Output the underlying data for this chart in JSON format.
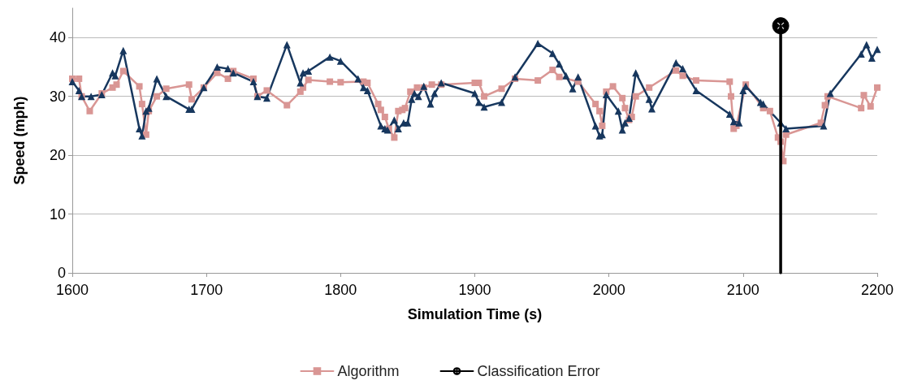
{
  "chart_data": {
    "type": "line",
    "xlabel": "Simulation Time (s)",
    "ylabel": "Speed (mph)",
    "xlim": [
      1600,
      2200
    ],
    "xticks": [
      1600,
      1700,
      1800,
      1900,
      2000,
      2100,
      2200
    ],
    "ylim": [
      0,
      45
    ],
    "yticks": [
      0,
      10,
      20,
      30,
      40
    ],
    "grid": "y",
    "legend": "bottom",
    "line_style": "solid",
    "series": [
      {
        "name": "Algorithm",
        "color": "#d99694",
        "marker": "square",
        "x": [
          1600,
          1605,
          1607,
          1613,
          1622,
          1630,
          1633,
          1638,
          1650,
          1652,
          1655,
          1657,
          1663,
          1670,
          1687,
          1689,
          1698,
          1708,
          1716,
          1720,
          1735,
          1738,
          1745,
          1760,
          1770,
          1772,
          1776,
          1792,
          1800,
          1817,
          1820,
          1828,
          1830,
          1833,
          1836,
          1840,
          1843,
          1846,
          1848,
          1852,
          1857,
          1862,
          1868,
          1875,
          1900,
          1903,
          1907,
          1920,
          1930,
          1947,
          1958,
          1963,
          1977,
          1990,
          1993,
          1995,
          1998,
          2003,
          2010,
          2012,
          2015,
          2017,
          2020,
          2030,
          2050,
          2055,
          2065,
          2090,
          2091,
          2093,
          2095,
          2102,
          2115,
          2120,
          2126,
          2128,
          2130,
          2132,
          2158,
          2161,
          2163,
          2188,
          2190,
          2195,
          2200
        ],
        "values": [
          33,
          33,
          30,
          27.5,
          30.5,
          31.5,
          32,
          34.3,
          31.7,
          28.7,
          23.5,
          27.5,
          30,
          31.3,
          32,
          29.5,
          31.5,
          34,
          33,
          34.3,
          33,
          30,
          31,
          28.5,
          30.8,
          31.5,
          32.8,
          32.5,
          32.4,
          32.5,
          32.3,
          28.7,
          27.7,
          26.5,
          24.5,
          23,
          27.5,
          27.7,
          28,
          30.8,
          31.5,
          31.5,
          32,
          32,
          32.3,
          32.3,
          30,
          31.3,
          33,
          32.7,
          34.5,
          33.3,
          32.5,
          28.7,
          27.5,
          25,
          30.8,
          31.7,
          29.7,
          28,
          26,
          26.5,
          30,
          31.5,
          34.4,
          33.5,
          32.7,
          32.5,
          30,
          24.5,
          25,
          32,
          28,
          27.5,
          23,
          22.3,
          19,
          23.5,
          25.5,
          28.5,
          30,
          28,
          30.2,
          28.3,
          31.5
        ]
      },
      {
        "color": "#17375e",
        "marker": "triangle",
        "x": [
          1600,
          1605,
          1607,
          1614,
          1622,
          1630,
          1632,
          1638,
          1650,
          1652,
          1655,
          1657,
          1663,
          1670,
          1687,
          1689,
          1698,
          1708,
          1716,
          1720,
          1735,
          1738,
          1745,
          1760,
          1770,
          1772,
          1776,
          1792,
          1800,
          1813,
          1817,
          1820,
          1830,
          1833,
          1835,
          1840,
          1843,
          1847,
          1850,
          1853,
          1855,
          1858,
          1862,
          1867,
          1870,
          1875,
          1900,
          1903,
          1907,
          1920,
          1930,
          1947,
          1958,
          1963,
          1968,
          1973,
          1977,
          1990,
          1993,
          1995,
          1998,
          2007,
          2010,
          2012,
          2015,
          2020,
          2030,
          2032,
          2050,
          2055,
          2065,
          2090,
          2093,
          2097,
          2100,
          2102,
          2113,
          2115,
          2128,
          2132,
          2160,
          2165,
          2188,
          2192,
          2196,
          2200
        ],
        "values": [
          32.5,
          31,
          30,
          30,
          30.3,
          34,
          33.5,
          37.8,
          24.5,
          23.3,
          27.5,
          28,
          33,
          30,
          27.8,
          27.8,
          31.5,
          35,
          34.7,
          34,
          32.5,
          30,
          29.7,
          38.8,
          32.3,
          34,
          34.3,
          36.7,
          36,
          33,
          31.5,
          31,
          25,
          24.5,
          24.3,
          26,
          24.5,
          25.5,
          25.5,
          29.5,
          30.5,
          30,
          31.7,
          28.7,
          30.5,
          32.3,
          30.5,
          29,
          28.2,
          29,
          33.3,
          39,
          37.3,
          35.5,
          33.5,
          31.3,
          33.3,
          25,
          23.3,
          23.5,
          30.3,
          27.5,
          24.3,
          25.5,
          26.3,
          34,
          29.5,
          27.9,
          35.7,
          34.7,
          31,
          27,
          25.7,
          25.5,
          31,
          31.7,
          29,
          28.7,
          25.5,
          24.5,
          25,
          30.5,
          37.2,
          38.8,
          36.5,
          38
        ]
      },
      {
        "name": "Classification Error",
        "color": "#000000",
        "marker": "cross",
        "x": [
          2128,
          2128
        ],
        "values": [
          0,
          42
        ]
      }
    ]
  }
}
